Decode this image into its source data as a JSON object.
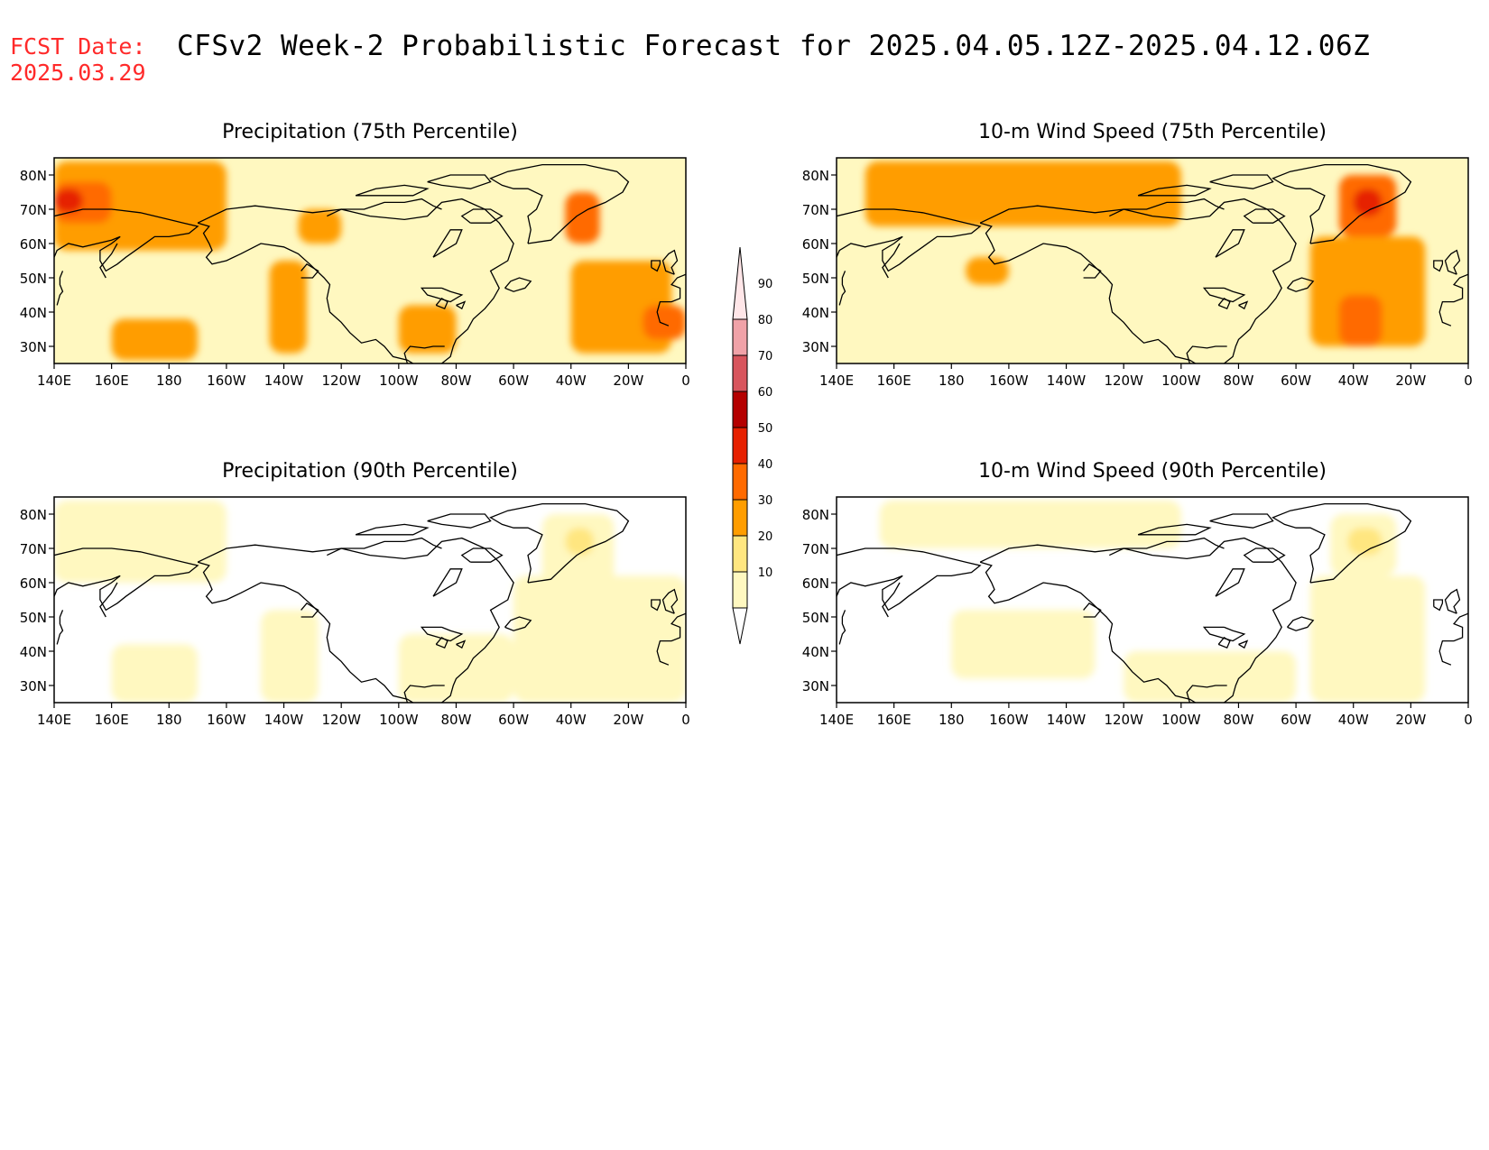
{
  "header": {
    "fcst_label": "FCST Date:",
    "fcst_date": "2025.03.29",
    "title": "CFSv2 Week-2 Probabilistic Forecast for 2025.04.05.12Z-2025.04.12.06Z"
  },
  "axes": {
    "lon_ticks": [
      "140E",
      "160E",
      "180",
      "160W",
      "140W",
      "120W",
      "100W",
      "80W",
      "60W",
      "40W",
      "20W",
      "0"
    ],
    "lat_ticks": [
      "30N",
      "40N",
      "50N",
      "60N",
      "70N",
      "80N"
    ],
    "lon_range": [
      140,
      360
    ],
    "lat_range": [
      25,
      85
    ]
  },
  "colorbar": {
    "levels": [
      "10",
      "20",
      "30",
      "40",
      "50",
      "60",
      "70",
      "80",
      "90"
    ],
    "colors": [
      "#fff8c0",
      "#ffe680",
      "#ff9d00",
      "#ff6a00",
      "#e62000",
      "#b40000",
      "#d8555d",
      "#f0a2a8",
      "#ffe6e8"
    ]
  },
  "panels": [
    {
      "id": "precip75",
      "title": "Precipitation (75th Percentile)"
    },
    {
      "id": "wind75",
      "title": "10-m Wind Speed (75th Percentile)"
    },
    {
      "id": "precip90",
      "title": "Precipitation (90th Percentile)"
    },
    {
      "id": "wind90",
      "title": "10-m Wind Speed (90th Percentile)"
    }
  ],
  "chart_data": [
    {
      "type": "heatmap",
      "title": "Precipitation (75th Percentile)",
      "background_level": 10,
      "regions": [
        {
          "lon": [
            140,
            360
          ],
          "lat": [
            25,
            85
          ],
          "level": 10
        },
        {
          "lon": [
            140,
            200
          ],
          "lat": [
            58,
            84
          ],
          "level": 30
        },
        {
          "lon": [
            140,
            160
          ],
          "lat": [
            66,
            78
          ],
          "level": 40
        },
        {
          "lon": [
            140,
            150
          ],
          "lat": [
            69,
            76
          ],
          "level": 50
        },
        {
          "lon": [
            215,
            228
          ],
          "lat": [
            28,
            55
          ],
          "level": 30
        },
        {
          "lon": [
            225,
            240
          ],
          "lat": [
            60,
            70
          ],
          "level": 30
        },
        {
          "lon": [
            260,
            280
          ],
          "lat": [
            28,
            42
          ],
          "level": 30
        },
        {
          "lon": [
            320,
            355
          ],
          "lat": [
            28,
            55
          ],
          "level": 30
        },
        {
          "lon": [
            318,
            330
          ],
          "lat": [
            60,
            75
          ],
          "level": 40
        },
        {
          "lon": [
            345,
            360
          ],
          "lat": [
            32,
            42
          ],
          "level": 40
        },
        {
          "lon": [
            160,
            190
          ],
          "lat": [
            26,
            38
          ],
          "level": 30
        }
      ]
    },
    {
      "type": "heatmap",
      "title": "10-m Wind Speed (75th Percentile)",
      "background_level": 10,
      "regions": [
        {
          "lon": [
            140,
            360
          ],
          "lat": [
            25,
            85
          ],
          "level": 10
        },
        {
          "lon": [
            150,
            260
          ],
          "lat": [
            65,
            84
          ],
          "level": 30
        },
        {
          "lon": [
            305,
            345
          ],
          "lat": [
            30,
            62
          ],
          "level": 30
        },
        {
          "lon": [
            315,
            335
          ],
          "lat": [
            62,
            80
          ],
          "level": 40
        },
        {
          "lon": [
            320,
            330
          ],
          "lat": [
            68,
            76
          ],
          "level": 50
        },
        {
          "lon": [
            185,
            200
          ],
          "lat": [
            48,
            56
          ],
          "level": 30
        },
        {
          "lon": [
            315,
            330
          ],
          "lat": [
            30,
            45
          ],
          "level": 40
        }
      ]
    },
    {
      "type": "heatmap",
      "title": "Precipitation (90th Percentile)",
      "background_level": null,
      "regions": [
        {
          "lon": [
            140,
            200
          ],
          "lat": [
            60,
            84
          ],
          "level": 10
        },
        {
          "lon": [
            300,
            360
          ],
          "lat": [
            25,
            62
          ],
          "level": 10
        },
        {
          "lon": [
            260,
            300
          ],
          "lat": [
            25,
            45
          ],
          "level": 10
        },
        {
          "lon": [
            310,
            335
          ],
          "lat": [
            55,
            80
          ],
          "level": 10
        },
        {
          "lon": [
            318,
            328
          ],
          "lat": [
            68,
            76
          ],
          "level": 20
        },
        {
          "lon": [
            160,
            190
          ],
          "lat": [
            25,
            42
          ],
          "level": 10
        },
        {
          "lon": [
            212,
            232
          ],
          "lat": [
            25,
            52
          ],
          "level": 10
        }
      ]
    },
    {
      "type": "heatmap",
      "title": "10-m Wind Speed (90th Percentile)",
      "background_level": null,
      "regions": [
        {
          "lon": [
            155,
            260
          ],
          "lat": [
            70,
            84
          ],
          "level": 10
        },
        {
          "lon": [
            305,
            345
          ],
          "lat": [
            25,
            62
          ],
          "level": 10
        },
        {
          "lon": [
            312,
            335
          ],
          "lat": [
            62,
            80
          ],
          "level": 10
        },
        {
          "lon": [
            318,
            330
          ],
          "lat": [
            68,
            76
          ],
          "level": 20
        },
        {
          "lon": [
            180,
            230
          ],
          "lat": [
            32,
            52
          ],
          "level": 10
        },
        {
          "lon": [
            240,
            300
          ],
          "lat": [
            25,
            40
          ],
          "level": 10
        }
      ]
    }
  ]
}
